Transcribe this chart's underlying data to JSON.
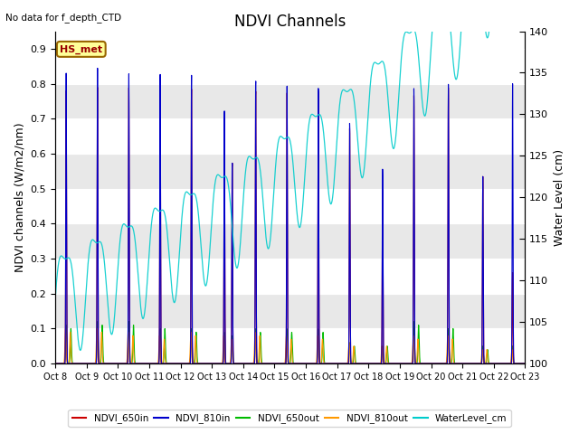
{
  "title": "NDVI Channels",
  "top_left_text": "No data for f_depth_CTD",
  "annotation_text": "HS_met",
  "ylabel_left": "NDVI channels (W/m2/nm)",
  "ylabel_right": "Water Level (cm)",
  "ylim_left": [
    0.0,
    0.95
  ],
  "ylim_right": [
    100,
    140
  ],
  "xtick_labels": [
    "Oct 8",
    "Oct 9",
    "Oct 10",
    "Oct 11",
    "Oct 12",
    "Oct 13",
    "Oct 14",
    "Oct 15",
    "Oct 16",
    "Oct 17",
    "Oct 18",
    "Oct 19",
    "Oct 20",
    "Oct 21",
    "Oct 22",
    "Oct 23"
  ],
  "yticks_left": [
    0.0,
    0.1,
    0.2,
    0.3,
    0.4,
    0.5,
    0.6,
    0.7,
    0.8,
    0.9
  ],
  "yticks_right": [
    100,
    105,
    110,
    115,
    120,
    125,
    130,
    135,
    140
  ],
  "colors": {
    "NDVI_650in": "#cc0000",
    "NDVI_810in": "#0000cc",
    "NDVI_650out": "#00bb00",
    "NDVI_810out": "#ff9900",
    "WaterLevel_cm": "#00cccc"
  },
  "band_colors": [
    "#ffffff",
    "#e8e8e8"
  ],
  "title_fontsize": 12,
  "label_fontsize": 9,
  "tick_fontsize": 8,
  "xtick_fontsize": 7
}
